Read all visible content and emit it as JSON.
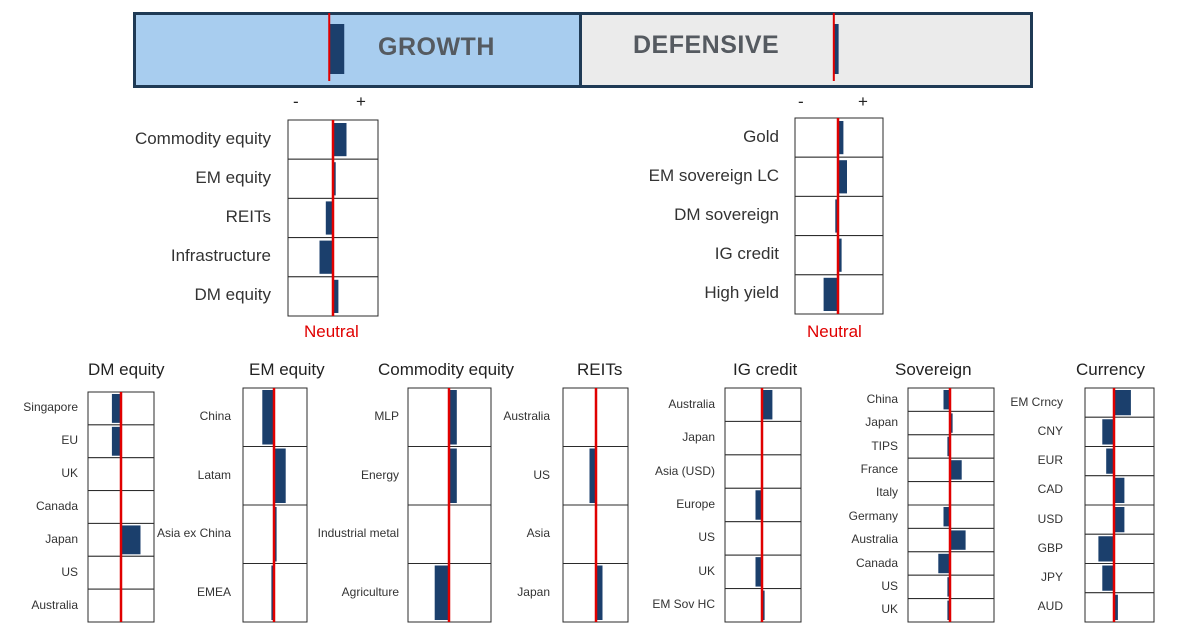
{
  "banner": {
    "growth_label": "GROWTH",
    "defensive_label": "DEFENSIVE",
    "growth_value": 2.5,
    "defensive_value": 0.8,
    "neutral_fraction_growth": 0.44,
    "neutral_fraction_defensive": 0.565,
    "colors": {
      "growth_bg": "#a8cdef",
      "defensive_bg": "#ebebeb",
      "border": "#1f3a55",
      "bar": "#1b3f6c",
      "neutral": "#e00000"
    }
  },
  "main_panels": {
    "minus_label": "-",
    "plus_label": "+",
    "neutral_label": "Neutral"
  },
  "chart_data": [
    {
      "type": "bar",
      "orientation": "horizontal",
      "title": "GROWTH",
      "neutral": 0,
      "xlim": [
        -5,
        5
      ],
      "categories": [
        "Commodity equity",
        "EM equity",
        "REITs",
        "Infrastructure",
        "DM equity"
      ],
      "values": [
        1.5,
        0.3,
        -0.8,
        -1.5,
        0.6
      ]
    },
    {
      "type": "bar",
      "orientation": "horizontal",
      "title": "DEFENSIVE",
      "neutral": 0,
      "xlim": [
        -5,
        5
      ],
      "categories": [
        "Gold",
        "EM sovereign LC",
        "DM sovereign",
        "IG credit",
        "High yield"
      ],
      "values": [
        0.6,
        1.0,
        -0.3,
        0.4,
        -1.6
      ]
    },
    {
      "type": "bar",
      "orientation": "horizontal",
      "title": "DM equity",
      "neutral": 0,
      "xlim": [
        -2.5,
        2.5
      ],
      "categories": [
        "Singapore",
        "EU",
        "UK",
        "Canada",
        "Japan",
        "US",
        "Australia"
      ],
      "values": [
        -0.7,
        -0.7,
        0,
        0,
        1.5,
        0,
        0
      ]
    },
    {
      "type": "bar",
      "orientation": "horizontal",
      "title": "EM equity",
      "neutral": 0,
      "xlim": [
        -2.5,
        2.5
      ],
      "categories": [
        "China",
        "Latam",
        "Asia ex China",
        "EMEA"
      ],
      "values": [
        -0.9,
        0.9,
        0.2,
        -0.2
      ]
    },
    {
      "type": "bar",
      "orientation": "horizontal",
      "title": "Commodity equity",
      "neutral": 0,
      "xlim": [
        -2.5,
        2.5
      ],
      "categories": [
        "MLP",
        "Energy",
        "Industrial metal",
        "Agriculture"
      ],
      "values": [
        0.6,
        0.6,
        0,
        -1.1
      ]
    },
    {
      "type": "bar",
      "orientation": "horizontal",
      "title": "REITs",
      "neutral": 0,
      "xlim": [
        -2.5,
        2.5
      ],
      "categories": [
        "Australia",
        "US",
        "Asia",
        "Japan"
      ],
      "values": [
        0,
        -0.5,
        0,
        0.5
      ]
    },
    {
      "type": "bar",
      "orientation": "horizontal",
      "title": "IG credit",
      "neutral": 0,
      "xlim": [
        -2.5,
        2.5
      ],
      "categories": [
        "Australia",
        "Japan",
        "Asia (USD)",
        "Europe",
        "US",
        "UK",
        "EM Sov HC"
      ],
      "values": [
        0.8,
        0,
        0,
        -0.5,
        0,
        -0.5,
        0.2
      ]
    },
    {
      "type": "bar",
      "orientation": "horizontal",
      "title": "Sovereign",
      "neutral": 0,
      "xlim": [
        -2.5,
        2.5
      ],
      "categories": [
        "China",
        "Japan",
        "TIPS",
        "France",
        "Italy",
        "Germany",
        "Australia",
        "Canada",
        "US",
        "UK"
      ],
      "values": [
        -0.5,
        0.2,
        -0.2,
        0.9,
        0,
        -0.5,
        1.2,
        -0.9,
        -0.2,
        -0.2
      ]
    },
    {
      "type": "bar",
      "orientation": "horizontal",
      "title": "Currency",
      "neutral": 0,
      "xlim": [
        -2.5,
        2.5
      ],
      "categories": [
        "EM Crncy",
        "CNY",
        "EUR",
        "CAD",
        "USD",
        "GBP",
        "JPY",
        "AUD"
      ],
      "values": [
        1.3,
        -0.9,
        -0.6,
        0.8,
        0.8,
        -1.2,
        -0.9,
        0.3
      ]
    }
  ]
}
